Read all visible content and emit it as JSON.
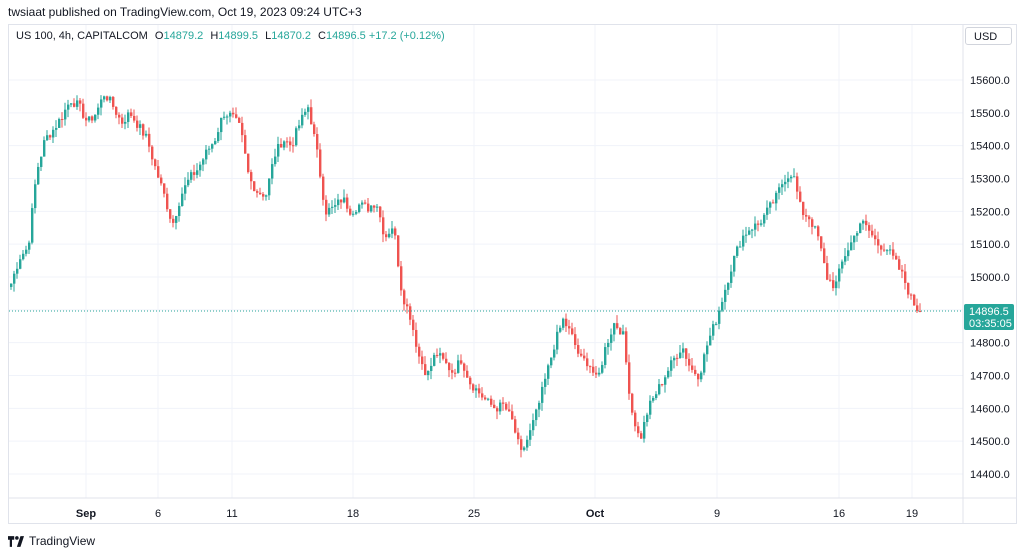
{
  "header": {
    "published": "twsiaat published on TradingView.com, Oct 19, 2023 09:24 UTC+3"
  },
  "legend": {
    "symbol": "US 100, 4h, CAPITALCOM",
    "o_label": "O",
    "o": "14879.2",
    "h_label": "H",
    "h": "14899.5",
    "l_label": "L",
    "l": "14870.2",
    "c_label": "C",
    "c": "14896.5",
    "change": "+17.2 (+0.12%)"
  },
  "currency_button": "USD",
  "price_tag": {
    "price": "14896.5",
    "countdown": "03:35:05"
  },
  "footer": {
    "brand": "TradingView"
  },
  "colors": {
    "up": "#26a69a",
    "down": "#ef5350",
    "grid": "#f0f3fa",
    "axis_text": "#131722"
  },
  "chart_data": {
    "type": "candlestick",
    "timeframe": "4h",
    "ylim": [
      14330,
      15710
    ],
    "last_price": 14896.5,
    "y_ticks": [
      14400.0,
      14500.0,
      14600.0,
      14700.0,
      14800.0,
      14900.0,
      15000.0,
      15100.0,
      15200.0,
      15300.0,
      15400.0,
      15500.0,
      15600.0
    ],
    "x_ticks": [
      {
        "label": "Sep",
        "bold": true
      },
      {
        "label": "6",
        "bold": false
      },
      {
        "label": "11",
        "bold": false
      },
      {
        "label": "18",
        "bold": false
      },
      {
        "label": "25",
        "bold": false
      },
      {
        "label": "Oct",
        "bold": true
      },
      {
        "label": "9",
        "bold": false
      },
      {
        "label": "16",
        "bold": false
      },
      {
        "label": "19",
        "bold": false
      }
    ],
    "anchor_closes": [
      14980,
      15060,
      15090,
      15320,
      15420,
      15450,
      15490,
      15540,
      15520,
      15470,
      15500,
      15560,
      15520,
      15470,
      15500,
      15460,
      15420,
      15330,
      15250,
      15160,
      15250,
      15300,
      15330,
      15380,
      15420,
      15500,
      15490,
      15450,
      15300,
      15260,
      15250,
      15370,
      15420,
      15400,
      15470,
      15520,
      15380,
      15200,
      15210,
      15240,
      15200,
      15220,
      15210,
      15230,
      15120,
      15160,
      14950,
      14880,
      14760,
      14700,
      14770,
      14740,
      14710,
      14750,
      14680,
      14650,
      14620,
      14600,
      14610,
      14560,
      14460,
      14520,
      14600,
      14700,
      14800,
      14870,
      14820,
      14750,
      14740,
      14680,
      14790,
      14860,
      14830,
      14600,
      14500,
      14600,
      14650,
      14700,
      14750,
      14790,
      14720,
      14700,
      14800,
      14870,
      14960,
      15050,
      15120,
      15150,
      15160,
      15200,
      15240,
      15300,
      15320,
      15200,
      15180,
      15120,
      15000,
      14970,
      15060,
      15110,
      15170,
      15140,
      15100,
      15090,
      15050,
      15000,
      14930,
      14890
    ]
  }
}
